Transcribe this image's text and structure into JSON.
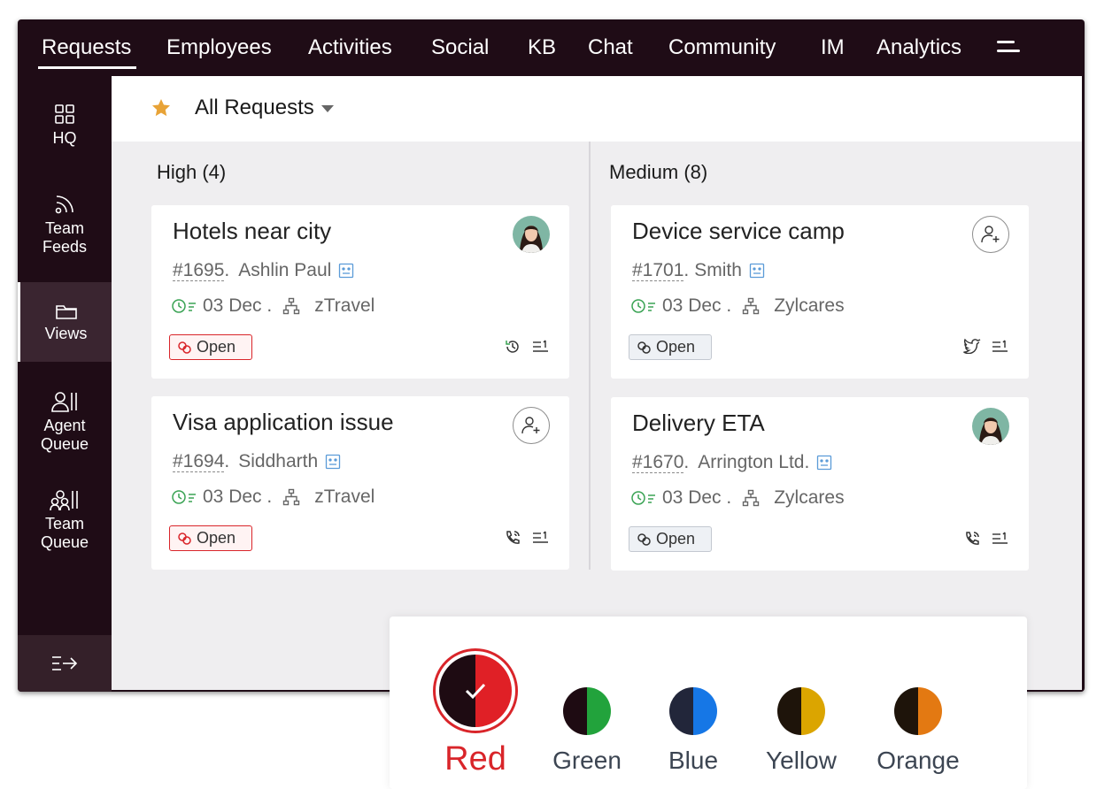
{
  "nav": {
    "tabs": [
      {
        "label": "Requests",
        "active": true
      },
      {
        "label": "Employees"
      },
      {
        "label": "Activities"
      },
      {
        "label": "Social"
      },
      {
        "label": "KB"
      },
      {
        "label": "Chat"
      },
      {
        "label": "Community"
      },
      {
        "label": "IM"
      },
      {
        "label": "Analytics"
      }
    ]
  },
  "sidebar": {
    "items": [
      {
        "label": "HQ",
        "icon": "grid-icon"
      },
      {
        "label": "Team Feeds",
        "icon": "feed-icon"
      },
      {
        "label": "Views",
        "icon": "folder-icon",
        "active": true
      },
      {
        "label": "Agent Queue",
        "icon": "agent-queue-icon"
      },
      {
        "label": "Team Queue",
        "icon": "team-queue-icon"
      }
    ]
  },
  "header": {
    "title": "All Requests"
  },
  "columns": [
    {
      "title": "High (4)"
    },
    {
      "title": "Medium (8)"
    }
  ],
  "cards": [
    {
      "title": "Hotels near city",
      "id": "#1695",
      "sep": ".",
      "contact": "Ashlin Paul",
      "date": "03 Dec .",
      "dept": "zTravel",
      "status": "Open",
      "channel": "history-icon"
    },
    {
      "title": "Visa application issue",
      "id": "#1694",
      "sep": ".",
      "contact": "Siddharth",
      "date": "03 Dec .",
      "dept": "zTravel",
      "status": "Open",
      "channel": "phone-icon"
    },
    {
      "title": "Device service camp",
      "id": "#1701",
      "sep": " .",
      "contact": "Smith",
      "date": "03 Dec .",
      "dept": "Zylcares",
      "status": "Open",
      "channel": "twitter-icon"
    },
    {
      "title": "Delivery ETA",
      "id": "#1670",
      "sep": " .",
      "contact": "Arrington Ltd.",
      "date": "03 Dec .",
      "dept": "Zylcares",
      "status": "Open",
      "channel": "phone-icon"
    }
  ],
  "themes": {
    "selected": "Red",
    "options": [
      {
        "label": "Red",
        "color": "#e02026"
      },
      {
        "label": "Green",
        "color": "#22a33c"
      },
      {
        "label": "Blue",
        "color": "#1677e6"
      },
      {
        "label": "Yellow",
        "color": "#dba500"
      },
      {
        "label": "Orange",
        "color": "#e37912"
      }
    ],
    "dark_half": "#1e0b12"
  },
  "colors": {
    "accent_red": "#d9252a",
    "nav_bg": "#1f0c16"
  }
}
